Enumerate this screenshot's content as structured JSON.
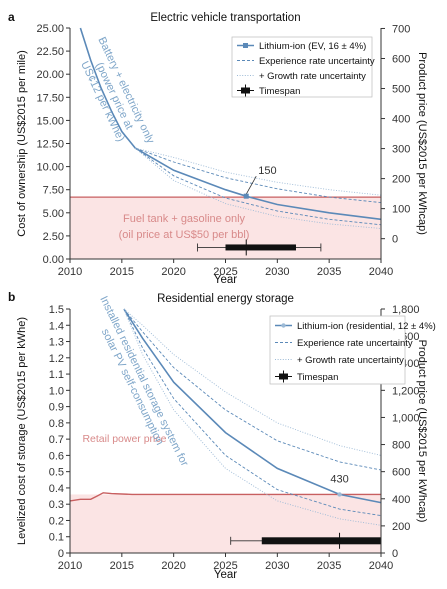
{
  "chart_data": [
    {
      "panel_label": "a",
      "type": "line",
      "title": "Electric vehicle transportation",
      "xlabel": "Year",
      "ylabel": "Cost of ownership (US$2015 per mile)",
      "ylabel_right": "Product price (US$2015 per kWhcap)",
      "xlim": [
        2010,
        2040
      ],
      "ylim": [
        0,
        25
      ],
      "xticks": [
        "2010",
        "2015",
        "2020",
        "2025",
        "2030",
        "2035",
        "2040"
      ],
      "yticks": [
        "0.00",
        "2.50",
        "5.00",
        "7.50",
        "10.00",
        "12.50",
        "15.00",
        "17.50",
        "20.00",
        "22.50",
        "25.00"
      ],
      "yticks_right": [
        {
          "label": "0",
          "y": 2.2
        },
        {
          "label": "100",
          "y": 5.45
        },
        {
          "label": "200",
          "y": 8.7
        },
        {
          "label": "300",
          "y": 11.95
        },
        {
          "label": "400",
          "y": 15.2
        },
        {
          "label": "500",
          "y": 18.45
        },
        {
          "label": "600",
          "y": 21.7
        },
        {
          "label": "700",
          "y": 24.95
        }
      ],
      "band_threshold": 6.7,
      "band_text": [
        "Fuel tank + gasoline only",
        "(oil price at US$50 per bbl)"
      ],
      "rotated_text": [
        "Battery + electricity only",
        "(power price at",
        "US¢12 per kWhe)"
      ],
      "legend": [
        {
          "label": "Lithium-ion (EV, 16 ± 4%)",
          "style": "main"
        },
        {
          "label": "Experience rate uncertainty",
          "style": "dashed"
        },
        {
          "label": "+ Growth rate uncertainty",
          "style": "dotted"
        },
        {
          "label": "Timespan",
          "style": "timespan"
        }
      ],
      "annotation": {
        "label": "150",
        "x": 2027,
        "y": 6.8
      },
      "series": [
        {
          "name": "Lithium-ion (EV, 16 ± 4%)",
          "style": "main",
          "x": [
            2011,
            2012,
            2013,
            2014,
            2015,
            2016.3,
            2020,
            2025,
            2027,
            2030,
            2035,
            2040
          ],
          "y": [
            25,
            21.5,
            18.5,
            16,
            13.8,
            12,
            9.6,
            7.5,
            6.8,
            5.9,
            5.0,
            4.3
          ]
        },
        {
          "name": "",
          "style": "dashed",
          "x": [
            2016.3,
            2020,
            2025,
            2030,
            2035,
            2040
          ],
          "y": [
            12,
            10.5,
            8.8,
            7.6,
            6.7,
            6.1
          ]
        },
        {
          "name": "",
          "style": "dashed",
          "x": [
            2016.3,
            2020,
            2025,
            2030,
            2035,
            2040
          ],
          "y": [
            12,
            9.0,
            6.6,
            5.2,
            4.3,
            3.7
          ]
        },
        {
          "name": "",
          "style": "dotted",
          "x": [
            2016.3,
            2020,
            2025,
            2030,
            2035,
            2040
          ],
          "y": [
            12,
            11.0,
            9.4,
            8.3,
            7.5,
            6.9
          ]
        },
        {
          "name": "",
          "style": "dotted",
          "x": [
            2016.3,
            2020,
            2025,
            2030,
            2035,
            2040
          ],
          "y": [
            12,
            8.5,
            6.0,
            4.6,
            3.8,
            3.3
          ]
        }
      ],
      "timespan": {
        "whisker": [
          2022.3,
          2034.2
        ],
        "box": [
          2025,
          2031.8
        ],
        "median": 2027,
        "y": 1.25
      }
    },
    {
      "panel_label": "b",
      "type": "line",
      "title": "Residential energy storage",
      "xlabel": "Year",
      "ylabel": "Levelized cost of storage (US$2015 per kWhe)",
      "ylabel_right": "Product price (US$2015 per kWhcap)",
      "xlim": [
        2010,
        2040
      ],
      "ylim": [
        0,
        1.5
      ],
      "xticks": [
        "2010",
        "2015",
        "2020",
        "2025",
        "2030",
        "2035",
        "2040"
      ],
      "yticks": [
        "0",
        "0.1",
        "0.2",
        "0.3",
        "0.4",
        "0.5",
        "0.6",
        "0.7",
        "0.8",
        "0.9",
        "1.0",
        "1.1",
        "1.2",
        "1.3",
        "1.4",
        "1.5"
      ],
      "yticks_right": [
        {
          "label": "0",
          "y": 0
        },
        {
          "label": "200",
          "y": 0.1667
        },
        {
          "label": "400",
          "y": 0.3333
        },
        {
          "label": "600",
          "y": 0.5
        },
        {
          "label": "800",
          "y": 0.6667
        },
        {
          "label": "1,000",
          "y": 0.8333
        },
        {
          "label": "1,200",
          "y": 1.0
        },
        {
          "label": "1,400",
          "y": 1.1667
        },
        {
          "label": "1,600",
          "y": 1.3333
        },
        {
          "label": "1,800",
          "y": 1.5
        }
      ],
      "band_threshold": 0.36,
      "band_text": [
        "Retail power price"
      ],
      "rotated_text": [
        "Installed residential storage system for",
        "solar PV self-consumption"
      ],
      "legend": [
        {
          "label": "Lithium-ion (residential, 12 ± 4%)",
          "style": "main"
        },
        {
          "label": "Experience rate uncertainty",
          "style": "dashed"
        },
        {
          "label": "+ Growth rate uncertainty",
          "style": "dotted"
        },
        {
          "label": "Timespan",
          "style": "timespan"
        }
      ],
      "annotation": {
        "label": "430",
        "x": 2036,
        "y": 0.36
      },
      "series": [
        {
          "name": "Retail power price",
          "style": "retail",
          "x": [
            2010,
            2011,
            2012,
            2012.6,
            2013.2,
            2014,
            2016,
            2020,
            2025,
            2030,
            2035,
            2040
          ],
          "y": [
            0.32,
            0.33,
            0.33,
            0.35,
            0.37,
            0.365,
            0.36,
            0.36,
            0.36,
            0.36,
            0.36,
            0.36
          ]
        },
        {
          "name": "Lithium-ion (residential, 12 ± 4%)",
          "style": "main",
          "x": [
            2015.2,
            2017,
            2020,
            2025,
            2030,
            2036,
            2040
          ],
          "y": [
            1.5,
            1.32,
            1.05,
            0.74,
            0.52,
            0.36,
            0.31
          ]
        },
        {
          "name": "",
          "style": "dashed",
          "x": [
            2015.2,
            2017,
            2020,
            2025,
            2030,
            2036,
            2040
          ],
          "y": [
            1.5,
            1.36,
            1.14,
            0.88,
            0.69,
            0.56,
            0.51
          ]
        },
        {
          "name": "",
          "style": "dashed",
          "x": [
            2015.2,
            2017,
            2020,
            2025,
            2030,
            2036,
            2040
          ],
          "y": [
            1.5,
            1.26,
            0.95,
            0.6,
            0.39,
            0.27,
            0.23
          ]
        },
        {
          "name": "",
          "style": "dotted",
          "x": [
            2015.2,
            2017,
            2020,
            2025,
            2030,
            2036,
            2040
          ],
          "y": [
            1.5,
            1.4,
            1.22,
            0.99,
            0.8,
            0.66,
            0.6
          ]
        },
        {
          "name": "",
          "style": "dotted",
          "x": [
            2015.2,
            2017,
            2020,
            2025,
            2030,
            2036,
            2040
          ],
          "y": [
            1.5,
            1.22,
            0.88,
            0.52,
            0.32,
            0.21,
            0.17
          ]
        }
      ],
      "timespan": {
        "whisker": [
          2025.5,
          2040
        ],
        "box": [
          2028.5,
          2040
        ],
        "median": 2036,
        "y": 0.075
      }
    }
  ]
}
